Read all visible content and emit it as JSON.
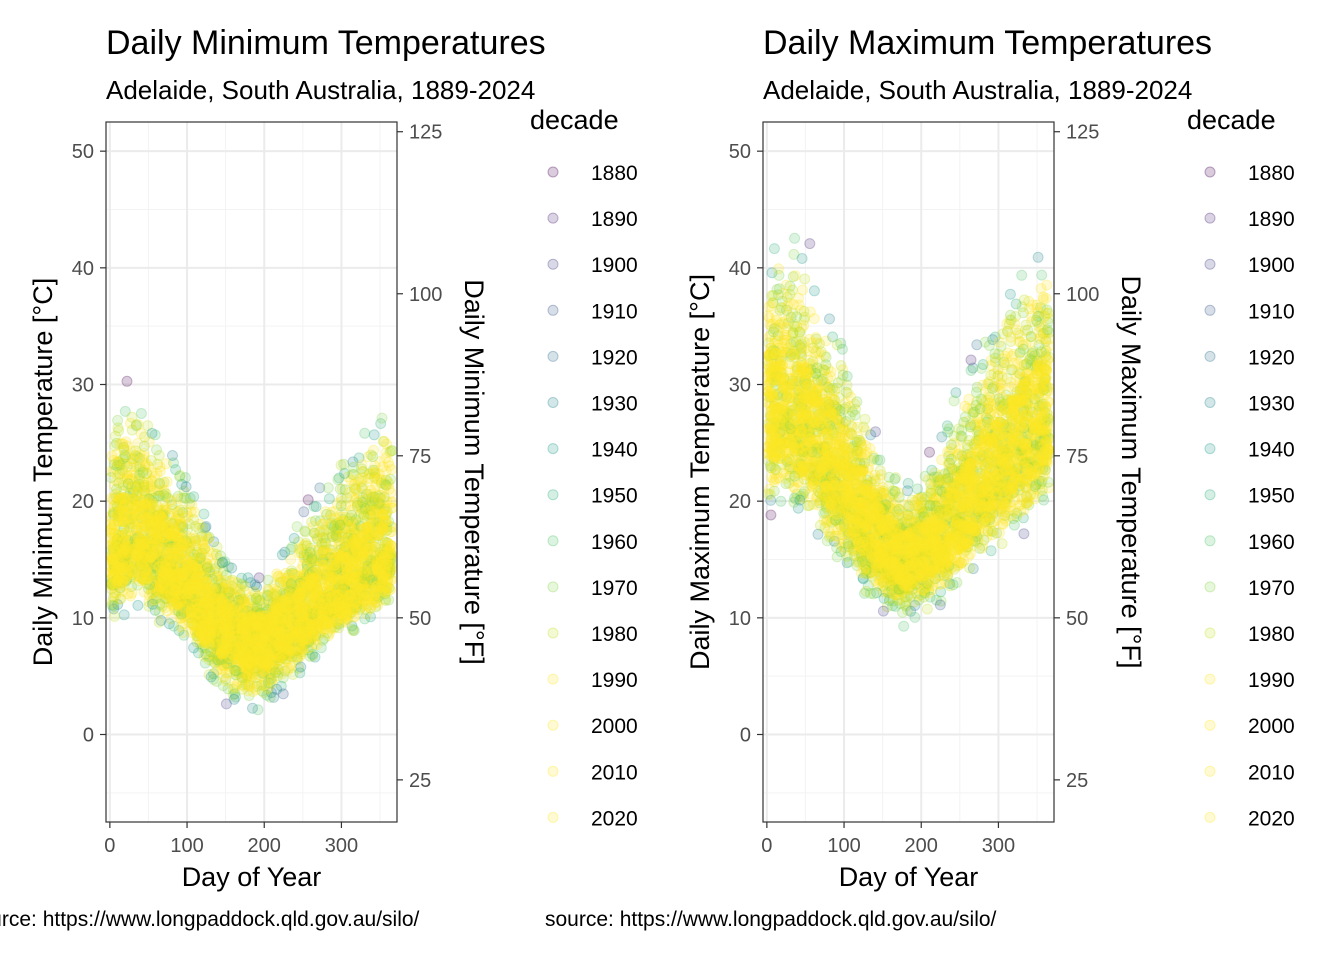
{
  "legend": {
    "title": "decade",
    "items": [
      "1880",
      "1890",
      "1900",
      "1910",
      "1920",
      "1930",
      "1940",
      "1950",
      "1960",
      "1970",
      "1980",
      "1990",
      "2000",
      "2010",
      "2020"
    ],
    "colors": [
      "#440154",
      "#482173",
      "#433E85",
      "#38598C",
      "#2D708E",
      "#25858E",
      "#1E9B8A",
      "#2BB07F",
      "#51C56A",
      "#85D54A",
      "#C2DF23",
      "#FDE725",
      "#FDE725",
      "#FDE725",
      "#FDE725"
    ]
  },
  "chart_data": [
    {
      "type": "scatter",
      "title": "Daily Minimum Temperatures",
      "subtitle": "Adelaide, South Australia, 1889-2024",
      "xlabel": "Day of Year",
      "ylabel": "Daily Minimum Temperature [°C]",
      "ylabel_right": "Daily Minimum Temperature [°F]",
      "caption": "source: https://www.longpaddock.qld.gov.au/silo/",
      "xlim": [
        -5,
        372
      ],
      "ylim": [
        -7.5,
        52.5
      ],
      "x_ticks": [
        0,
        100,
        200,
        300
      ],
      "y_ticks": [
        0,
        10,
        20,
        30,
        40,
        50
      ],
      "y_right_ticks": [
        25,
        50,
        75,
        100,
        125
      ],
      "grid": true,
      "legend_position": "right",
      "series": [
        {
          "name": "band",
          "x": [
            1,
            30,
            60,
            90,
            120,
            150,
            180,
            200,
            230,
            260,
            290,
            320,
            350,
            366
          ],
          "low": [
            9.0,
            9.5,
            9.0,
            7.0,
            5.0,
            2.0,
            1.0,
            1.5,
            3.0,
            5.0,
            7.0,
            8.0,
            9.0,
            9.5
          ],
          "high": [
            30.5,
            32.0,
            29.0,
            25.0,
            21.0,
            16.0,
            14.5,
            14.0,
            17.5,
            21.0,
            24.0,
            27.0,
            30.0,
            29.5
          ],
          "center": [
            16.0,
            17.5,
            16.0,
            14.0,
            11.0,
            9.0,
            8.0,
            8.0,
            9.5,
            11.0,
            12.5,
            14.0,
            15.5,
            16.0
          ]
        }
      ]
    },
    {
      "type": "scatter",
      "title": "Daily Maximum Temperatures",
      "subtitle": "Adelaide, South Australia, 1889-2024",
      "xlabel": "Day of Year",
      "ylabel": "Daily Maximum Temperature [°C]",
      "ylabel_right": "Daily Maximum Temperature [°F]",
      "caption": "source: https://www.longpaddock.qld.gov.au/silo/",
      "xlim": [
        -5,
        372
      ],
      "ylim": [
        -7.5,
        52.5
      ],
      "x_ticks": [
        0,
        100,
        200,
        300
      ],
      "y_ticks": [
        0,
        10,
        20,
        30,
        40,
        50
      ],
      "y_right_ticks": [
        25,
        50,
        75,
        100,
        125
      ],
      "grid": true,
      "legend_position": "right",
      "series": [
        {
          "name": "band",
          "x": [
            1,
            30,
            60,
            90,
            120,
            150,
            180,
            200,
            230,
            260,
            290,
            320,
            350,
            366
          ],
          "low": [
            17.5,
            18.0,
            16.0,
            13.5,
            11.5,
            10.0,
            9.0,
            9.5,
            10.5,
            12.0,
            14.0,
            15.5,
            17.0,
            17.5
          ],
          "high": [
            44.0,
            46.0,
            42.0,
            37.0,
            31.0,
            25.0,
            22.5,
            23.0,
            28.0,
            33.0,
            37.5,
            41.0,
            44.0,
            43.5
          ],
          "center": [
            28.0,
            28.5,
            26.0,
            23.0,
            19.5,
            16.5,
            15.0,
            15.5,
            17.5,
            20.0,
            22.5,
            25.0,
            27.0,
            28.0
          ]
        }
      ]
    }
  ]
}
